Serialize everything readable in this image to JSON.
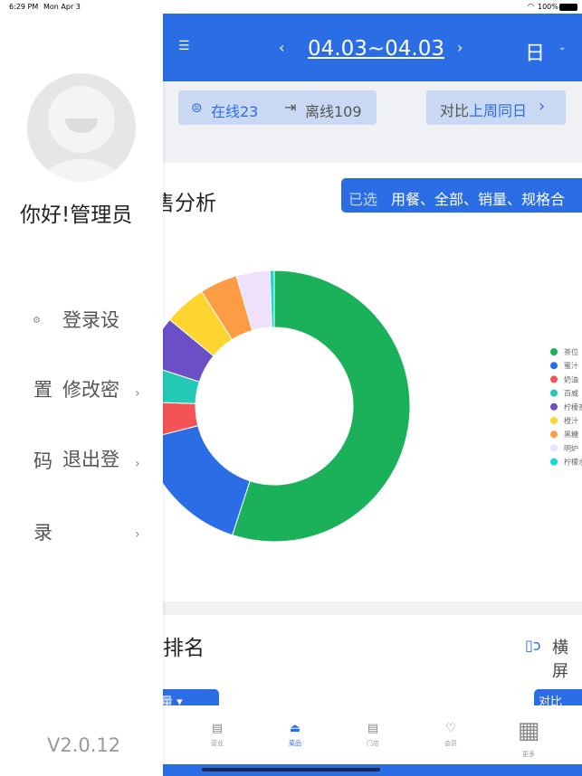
{
  "status_bar": {
    "time": "6:29 PM",
    "date": "Mon Apr 3",
    "battery": "100%"
  },
  "header": {
    "date_range": "04.03~04.03",
    "period": "日"
  },
  "stores": {
    "online": "在线23",
    "offline": "离线109"
  },
  "compare": {
    "prefix": "对比",
    "value": "上周同日"
  },
  "sales_card": {
    "title": "售分析",
    "filter_label": "已选",
    "filter_value": "用餐、全部、销量、规格合"
  },
  "ranking_card": {
    "title": "售排名",
    "landscape": "横屏",
    "left_button": "量",
    "right_button": "对比"
  },
  "chart_data": {
    "type": "pie",
    "donut": true,
    "unit": "percent share (estimated)",
    "categories": [
      "茶位",
      "蜜汁",
      "奶油",
      "百威",
      "柠檬茶",
      "橙汁",
      "黑糖",
      "明炉",
      "柠檬水"
    ],
    "values": [
      55,
      16,
      4.5,
      4.5,
      6,
      5,
      4.5,
      4,
      0.5
    ],
    "colors": [
      "#1bb05a",
      "#2b6de5",
      "#f45356",
      "#24c9b5",
      "#6a4fc6",
      "#fed52f",
      "#fd9c45",
      "#efe0fb",
      "#14d8d8"
    ],
    "legend": "right"
  },
  "tabbar": [
    {
      "label": "营业",
      "icon": "store-icon"
    },
    {
      "label": "菜品",
      "icon": "dish-cover-icon",
      "active": true
    },
    {
      "label": "门店",
      "icon": "shop-icon"
    },
    {
      "label": "会员",
      "icon": "diamond-icon"
    },
    {
      "label": "更多",
      "icon": "grid-icon"
    }
  ],
  "drawer": {
    "greeting": "你好!管理员",
    "version": "V2.0.12",
    "items": [
      {
        "a": "登录设",
        "b": "置"
      },
      {
        "a": "修改密",
        "b": "码"
      },
      {
        "a": "退出登",
        "b": "录"
      }
    ]
  }
}
